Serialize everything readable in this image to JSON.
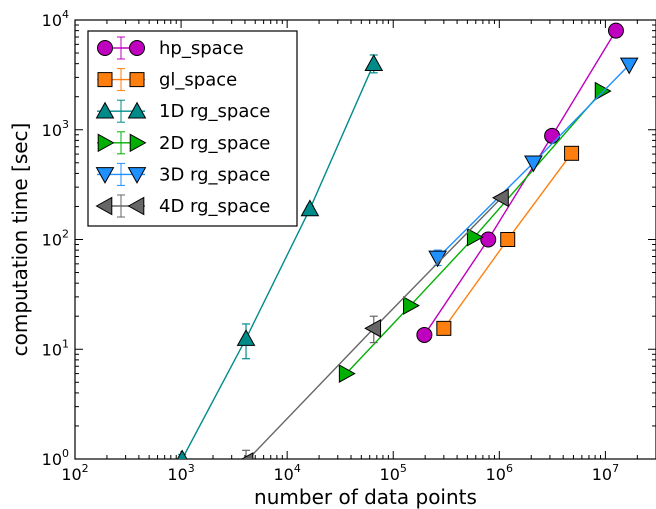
{
  "chart_data": {
    "type": "line",
    "xlabel": "number of data points",
    "ylabel": "computation time [sec]",
    "x_scale": "log",
    "y_scale": "log",
    "xlim": [
      100,
      30000000
    ],
    "ylim": [
      1,
      10000
    ],
    "x_ticks": [
      {
        "value": 100,
        "base": "10",
        "exp": "2"
      },
      {
        "value": 1000,
        "base": "10",
        "exp": "3"
      },
      {
        "value": 10000,
        "base": "10",
        "exp": "4"
      },
      {
        "value": 100000,
        "base": "10",
        "exp": "5"
      },
      {
        "value": 1000000,
        "base": "10",
        "exp": "6"
      },
      {
        "value": 10000000,
        "base": "10",
        "exp": "7"
      }
    ],
    "y_ticks": [
      {
        "value": 1,
        "base": "10",
        "exp": "0"
      },
      {
        "value": 10,
        "base": "10",
        "exp": "1"
      },
      {
        "value": 100,
        "base": "10",
        "exp": "2"
      },
      {
        "value": 1000,
        "base": "10",
        "exp": "3"
      },
      {
        "value": 10000,
        "base": "10",
        "exp": "4"
      }
    ],
    "grid": false,
    "legend_position": "top-left",
    "series": [
      {
        "name": "hp_space",
        "color": "#bf00bf",
        "marker": "circle",
        "points": [
          {
            "x": 196608,
            "y": 13.5
          },
          {
            "x": 786432,
            "y": 100
          },
          {
            "x": 3145728,
            "y": 880
          },
          {
            "x": 12582912,
            "y": 8000
          }
        ]
      },
      {
        "name": "gl_space",
        "color": "#ff7f0e",
        "marker": "square",
        "points": [
          {
            "x": 300000,
            "y": 15.5
          },
          {
            "x": 1200000,
            "y": 100
          },
          {
            "x": 4800000,
            "y": 610
          }
        ]
      },
      {
        "name": "1D rg_space",
        "color": "#008b8b",
        "marker": "triangle-up",
        "points": [
          {
            "x": 1024,
            "y": 1.0,
            "err": 0.1
          },
          {
            "x": 4096,
            "y": 12.5,
            "err_low": 8.2,
            "err_high": 17
          },
          {
            "x": 16384,
            "y": 190,
            "err": 12
          },
          {
            "x": 65536,
            "y": 4000,
            "err_low": 3300,
            "err_high": 4800
          }
        ]
      },
      {
        "name": "2D rg_space",
        "color": "#00b000",
        "marker": "triangle-right",
        "points": [
          {
            "x": 36000,
            "y": 6.0
          },
          {
            "x": 145000,
            "y": 25
          },
          {
            "x": 580000,
            "y": 105
          },
          {
            "x": 9300000,
            "y": 2250
          }
        ]
      },
      {
        "name": "3D rg_space",
        "color": "#1e90ff",
        "marker": "triangle-down",
        "points": [
          {
            "x": 262144,
            "y": 68,
            "err_low": 58,
            "err_high": 80
          },
          {
            "x": 2097152,
            "y": 500
          },
          {
            "x": 16777216,
            "y": 3900
          }
        ]
      },
      {
        "name": "4D rg_space",
        "color": "#666666",
        "marker": "triangle-left",
        "points": [
          {
            "x": 4096,
            "y": 0.95,
            "err_low": 0.85,
            "err_high": 1.2
          },
          {
            "x": 65536,
            "y": 15.5,
            "err_low": 11.5,
            "err_high": 20
          },
          {
            "x": 1048576,
            "y": 240
          }
        ]
      }
    ]
  }
}
